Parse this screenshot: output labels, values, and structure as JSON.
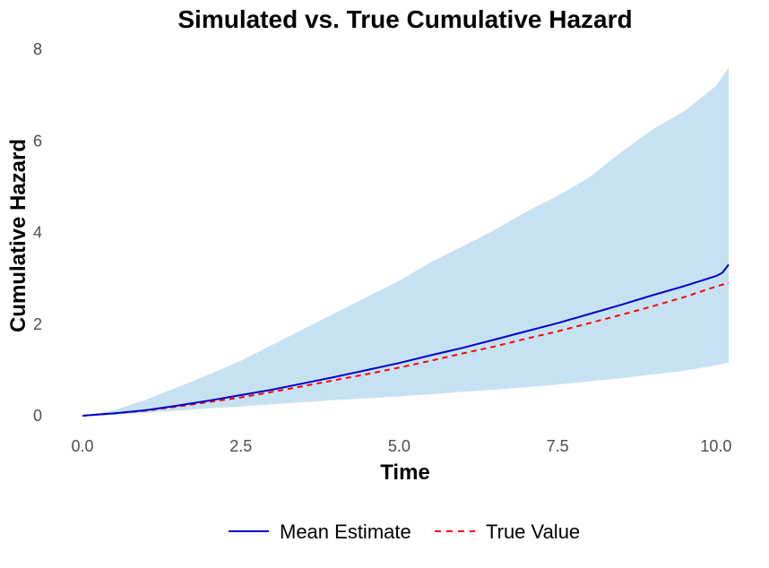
{
  "chart_data": {
    "type": "line",
    "title": "Simulated vs. True Cumulative Hazard",
    "xlabel": "Time",
    "ylabel": "Cumulative Hazard",
    "xlim": [
      0,
      10.2
    ],
    "ylim": [
      0,
      8
    ],
    "x_ticks": [
      0,
      2.5,
      5,
      7.5,
      10
    ],
    "x_tick_labels": [
      "0.0",
      "2.5",
      "5.0",
      "7.5",
      "10.0"
    ],
    "y_ticks": [
      0,
      2,
      4,
      6,
      8
    ],
    "y_tick_labels": [
      "0",
      "2",
      "4",
      "6",
      "8"
    ],
    "grid": false,
    "legend_position": "bottom",
    "band": {
      "x": [
        0,
        0.5,
        1,
        1.5,
        2,
        2.5,
        3,
        3.5,
        4,
        4.5,
        5,
        5.5,
        6,
        6.5,
        7,
        7.5,
        8,
        8.5,
        9,
        9.5,
        10,
        10.2
      ],
      "lower": [
        0,
        0.02,
        0.06,
        0.11,
        0.16,
        0.2,
        0.25,
        0.3,
        0.34,
        0.38,
        0.42,
        0.47,
        0.52,
        0.57,
        0.62,
        0.68,
        0.75,
        0.82,
        0.9,
        0.98,
        1.1,
        1.16
      ],
      "upper": [
        0,
        0.12,
        0.35,
        0.62,
        0.9,
        1.2,
        1.55,
        1.9,
        2.25,
        2.6,
        2.95,
        3.35,
        3.7,
        4.05,
        4.45,
        4.8,
        5.2,
        5.75,
        6.25,
        6.65,
        7.2,
        7.6
      ],
      "color": "#c6e2f2"
    },
    "series": [
      {
        "name": "Mean Estimate",
        "color": "#0000cc",
        "style": "solid",
        "x": [
          0,
          0.5,
          1,
          1.5,
          2,
          2.5,
          3,
          3.5,
          4,
          4.5,
          5,
          5.5,
          6,
          6.5,
          7,
          7.5,
          8,
          8.5,
          9,
          9.5,
          10,
          10.1,
          10.2
        ],
        "values": [
          0,
          0.05,
          0.12,
          0.22,
          0.33,
          0.45,
          0.57,
          0.71,
          0.85,
          1.0,
          1.15,
          1.32,
          1.48,
          1.66,
          1.84,
          2.02,
          2.22,
          2.42,
          2.63,
          2.83,
          3.05,
          3.12,
          3.3
        ]
      },
      {
        "name": "True Value",
        "color": "#ff0000",
        "style": "dashed",
        "x": [
          0,
          0.5,
          1,
          1.5,
          2,
          2.5,
          3,
          3.5,
          4,
          4.5,
          5,
          5.5,
          6,
          6.5,
          7,
          7.5,
          8,
          8.5,
          9,
          9.5,
          10,
          10.2
        ],
        "values": [
          0,
          0.05,
          0.11,
          0.2,
          0.3,
          0.4,
          0.52,
          0.65,
          0.78,
          0.91,
          1.05,
          1.2,
          1.36,
          1.51,
          1.68,
          1.84,
          2.02,
          2.2,
          2.39,
          2.59,
          2.82,
          2.9
        ]
      }
    ]
  }
}
